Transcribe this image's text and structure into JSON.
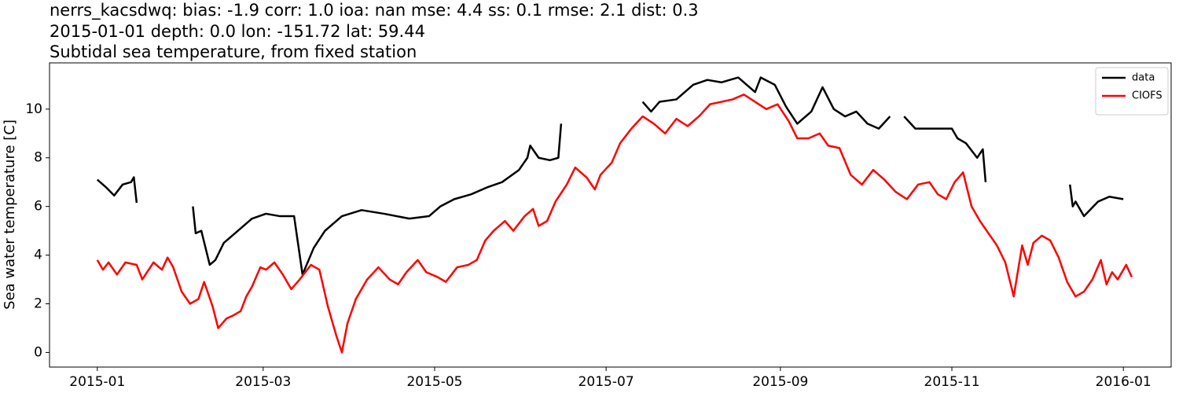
{
  "chart_data": {
    "type": "line",
    "title": [
      "nerrs_kacsdwq: bias: -1.9  corr: 1.0  ioa: nan  mse: 4.4  ss: 0.1  rmse: 2.1  dist: 0.3",
      "2015-01-01 depth: 0.0 lon: -151.72 lat: 59.44",
      "Subtidal sea temperature, from fixed station"
    ],
    "y_label": "Sea water temperature [C]",
    "xlim": [
      -17,
      382
    ],
    "xticks": [
      {
        "value": 0,
        "label": "2015-01"
      },
      {
        "value": 59,
        "label": "2015-03"
      },
      {
        "value": 120,
        "label": "2015-05"
      },
      {
        "value": 181,
        "label": "2015-07"
      },
      {
        "value": 243,
        "label": "2015-09"
      },
      {
        "value": 304,
        "label": "2015-11"
      },
      {
        "value": 365,
        "label": "2016-01"
      }
    ],
    "ylim": [
      -0.6,
      11.9
    ],
    "yticks": [
      0,
      2,
      4,
      6,
      8,
      10
    ],
    "grid": false,
    "legend": "upper right",
    "series": [
      {
        "name": "data",
        "color": "#000000",
        "x": [
          0,
          3,
          6,
          9,
          12,
          13,
          14,
          20,
          34,
          35,
          37,
          40,
          42,
          45,
          48,
          51,
          55,
          60,
          65,
          70,
          73,
          77,
          81,
          87,
          94,
          102,
          111,
          118,
          122,
          127,
          133,
          139,
          144,
          150,
          153,
          154,
          157,
          161,
          164,
          165,
          180,
          194,
          197,
          200,
          206,
          212,
          217,
          222,
          228,
          234,
          236,
          241,
          245,
          249,
          254,
          258,
          262,
          266,
          270,
          274,
          278,
          282,
          285,
          287,
          291,
          298,
          304,
          306,
          309,
          313,
          315,
          316,
          330,
          346,
          347,
          348,
          351,
          356,
          360,
          365
        ],
        "values": [
          7.1,
          6.8,
          6.45,
          6.9,
          7.0,
          7.2,
          6.15,
          null,
          6.0,
          4.9,
          5.0,
          3.6,
          3.8,
          4.5,
          4.8,
          5.1,
          5.5,
          5.7,
          5.6,
          5.6,
          3.2,
          4.3,
          5.0,
          5.6,
          5.85,
          5.7,
          5.5,
          5.6,
          6.0,
          6.3,
          6.5,
          6.8,
          7.0,
          7.5,
          8.0,
          8.5,
          8.0,
          7.9,
          8.0,
          9.4,
          null,
          10.3,
          9.9,
          10.3,
          10.4,
          11.0,
          11.2,
          11.1,
          11.3,
          10.7,
          11.3,
          11.0,
          10.1,
          9.4,
          9.9,
          10.9,
          10.0,
          9.7,
          9.9,
          9.4,
          9.2,
          9.7,
          null,
          9.7,
          9.2,
          9.2,
          9.2,
          8.8,
          8.6,
          8.0,
          8.35,
          7.0,
          null,
          6.9,
          6.0,
          6.2,
          5.6,
          6.2,
          6.4,
          6.3
        ]
      },
      {
        "name": "CIOFS",
        "color": "#ff0000",
        "x": [
          0,
          2,
          4,
          7,
          10,
          14,
          16,
          20,
          23,
          25,
          27,
          30,
          33,
          36,
          38,
          41,
          43,
          46,
          48,
          51,
          53,
          55,
          58,
          60,
          63,
          66,
          69,
          72,
          76,
          79,
          82,
          85,
          87,
          89,
          92,
          96,
          100,
          104,
          107,
          110,
          114,
          117,
          121,
          124,
          128,
          132,
          135,
          138,
          141,
          145,
          148,
          152,
          155,
          157,
          160,
          163,
          167,
          170,
          174,
          177,
          179,
          183,
          186,
          190,
          194,
          198,
          202,
          206,
          210,
          214,
          218,
          222,
          226,
          230,
          234,
          238,
          242,
          246,
          249,
          253,
          257,
          260,
          264,
          268,
          272,
          276,
          280,
          284,
          288,
          292,
          296,
          299,
          302,
          305,
          308,
          311,
          314,
          317,
          320,
          323,
          326,
          329,
          331,
          333,
          336,
          339,
          342,
          345,
          348,
          351,
          354,
          357,
          359,
          361,
          363,
          366,
          368
        ],
        "values": [
          3.8,
          3.4,
          3.7,
          3.2,
          3.7,
          3.6,
          3.0,
          3.7,
          3.4,
          3.9,
          3.5,
          2.5,
          2.0,
          2.2,
          2.9,
          1.9,
          1.0,
          1.4,
          1.5,
          1.7,
          2.3,
          2.7,
          3.5,
          3.4,
          3.7,
          3.2,
          2.6,
          3.0,
          3.6,
          3.4,
          1.9,
          0.7,
          0.0,
          1.2,
          2.2,
          3.0,
          3.5,
          3.0,
          2.8,
          3.3,
          3.8,
          3.3,
          3.1,
          2.9,
          3.5,
          3.6,
          3.8,
          4.6,
          5.0,
          5.4,
          5.0,
          5.6,
          5.9,
          5.2,
          5.4,
          6.2,
          6.9,
          7.6,
          7.2,
          6.7,
          7.3,
          7.8,
          8.6,
          9.2,
          9.7,
          9.4,
          9.0,
          9.6,
          9.3,
          9.7,
          10.2,
          10.3,
          10.4,
          10.6,
          10.3,
          10.0,
          10.2,
          9.5,
          8.8,
          8.8,
          9.0,
          8.5,
          8.4,
          7.3,
          6.9,
          7.5,
          7.1,
          6.6,
          6.3,
          6.9,
          7.0,
          6.5,
          6.3,
          7.0,
          7.4,
          6.0,
          5.4,
          4.9,
          4.4,
          3.7,
          2.3,
          4.4,
          3.6,
          4.5,
          4.8,
          4.6,
          3.9,
          2.9,
          2.3,
          2.5,
          3.0,
          3.8,
          2.8,
          3.3,
          3.0,
          3.6,
          3.1
        ]
      }
    ]
  }
}
